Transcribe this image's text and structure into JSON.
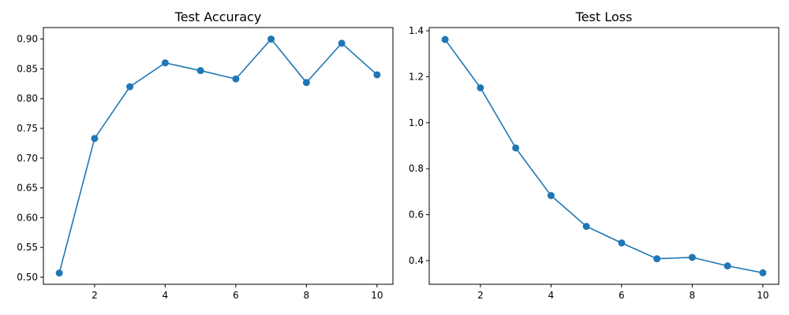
{
  "chart_data": [
    {
      "type": "line",
      "title": "Test Accuracy",
      "xlabel": "",
      "ylabel": "",
      "xlim": [
        0.55,
        10.45
      ],
      "ylim": [
        0.4881,
        0.9193
      ],
      "xticks": [
        2,
        4,
        6,
        8,
        10
      ],
      "yticks": [
        0.5,
        0.55,
        0.6,
        0.65,
        0.7,
        0.75,
        0.8,
        0.85,
        0.9
      ],
      "ytick_decimals": 2,
      "grid": false,
      "color": "#1f77b4",
      "marker": "circle",
      "x": [
        1,
        2,
        3,
        4,
        5,
        6,
        7,
        8,
        9,
        10
      ],
      "y": [
        0.507,
        0.733,
        0.82,
        0.86,
        0.847,
        0.833,
        0.9,
        0.827,
        0.893,
        0.84
      ]
    },
    {
      "type": "line",
      "title": "Test Loss",
      "xlabel": "",
      "ylabel": "",
      "xlim": [
        0.55,
        10.45
      ],
      "ylim": [
        0.297,
        1.414
      ],
      "xticks": [
        2,
        4,
        6,
        8,
        10
      ],
      "yticks": [
        0.4,
        0.6,
        0.8,
        1.0,
        1.2,
        1.4
      ],
      "ytick_decimals": 1,
      "grid": false,
      "color": "#1f77b4",
      "marker": "circle",
      "x": [
        1,
        2,
        3,
        4,
        5,
        6,
        7,
        8,
        9,
        10
      ],
      "y": [
        1.362,
        1.152,
        0.89,
        0.683,
        0.549,
        0.477,
        0.408,
        0.414,
        0.377,
        0.347
      ]
    }
  ]
}
